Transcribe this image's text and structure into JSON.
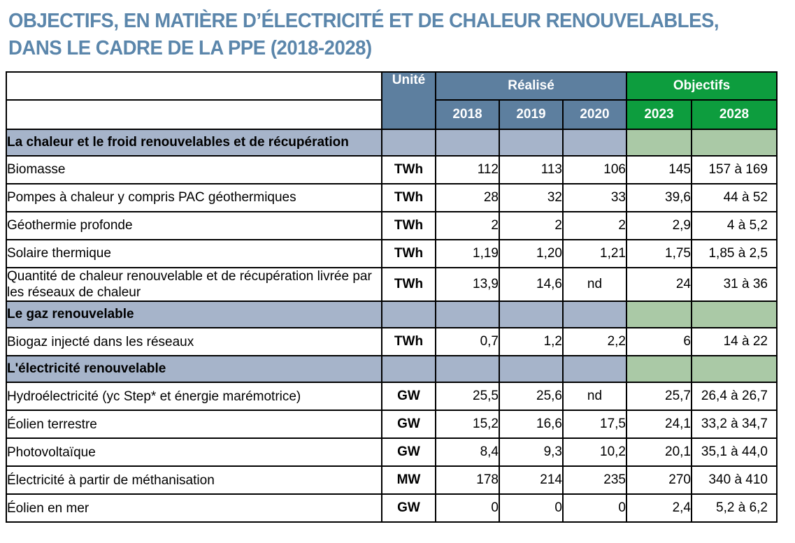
{
  "title": {
    "line1": "OBJECTIFS, EN MATIÈRE D’ÉLECTRICITÉ ET DE CHALEUR RENOUVELABLES,",
    "line2": "DANS LE CADRE DE LA PPE (2018-2028)"
  },
  "colors": {
    "title_text": "#5b86ab",
    "header_blue": "#5d7f9f",
    "header_green": "#0d9d3e",
    "section_blue": "#a6b4ca",
    "section_green": "#aac9a6",
    "header_text": "#ffffff",
    "body_text": "#000000",
    "grid_border": "#000000"
  },
  "table": {
    "header": {
      "unit_label": "Unité",
      "realized_label": "Réalisé",
      "objectives_label": "Objectifs",
      "realized_years": [
        "2018",
        "2019",
        "2020"
      ],
      "objective_years": [
        "2023",
        "2028"
      ]
    },
    "rows": [
      {
        "type": "section",
        "label": "La chaleur et le froid renouvelables et de récupération"
      },
      {
        "type": "data",
        "label": "Biomasse",
        "unit": "TWh",
        "values": [
          "112",
          "113",
          "106",
          "145",
          "157 à 169"
        ]
      },
      {
        "type": "data",
        "label": "Pompes à chaleur y compris PAC géothermiques",
        "unit": "TWh",
        "values": [
          "28",
          "32",
          "33",
          "39,6",
          "44 à 52"
        ]
      },
      {
        "type": "data",
        "label": "Géothermie profonde",
        "unit": "TWh",
        "values": [
          "2",
          "2",
          "2",
          "2,9",
          "4 à 5,2"
        ]
      },
      {
        "type": "data",
        "label": "Solaire thermique",
        "unit": "TWh",
        "values": [
          "1,19",
          "1,20",
          "1,21",
          "1,75",
          "1,85 à 2,5"
        ]
      },
      {
        "type": "data",
        "label": "Quantité de chaleur renouvelable et de récupération livrée par les réseaux de chaleur",
        "unit": "TWh",
        "values": [
          "13,9",
          "14,6",
          "nd",
          "24",
          "31 à 36"
        ]
      },
      {
        "type": "section",
        "label": "Le gaz renouvelable"
      },
      {
        "type": "data",
        "label": "Biogaz injecté dans les réseaux",
        "unit": "TWh",
        "values": [
          "0,7",
          "1,2",
          "2,2",
          "6",
          "14 à 22"
        ]
      },
      {
        "type": "section",
        "label": "L'électricité renouvelable"
      },
      {
        "type": "data",
        "label": "Hydroélectricité (yc Step* et énergie marémotrice)",
        "unit": "GW",
        "values": [
          "25,5",
          "25,6",
          "nd",
          "25,7",
          "26,4 à 26,7"
        ]
      },
      {
        "type": "data",
        "label": "Éolien terrestre",
        "unit": "GW",
        "values": [
          "15,2",
          "16,6",
          "17,5",
          "24,1",
          "33,2 à 34,7"
        ]
      },
      {
        "type": "data",
        "label": "Photovoltaïque",
        "unit": "GW",
        "values": [
          "8,4",
          "9,3",
          "10,2",
          "20,1",
          "35,1 à 44,0"
        ]
      },
      {
        "type": "data",
        "label": "Électricité à partir de méthanisation",
        "unit": "MW",
        "values": [
          "178",
          "214",
          "235",
          "270",
          "340 à 410"
        ]
      },
      {
        "type": "data",
        "label": "Éolien en mer",
        "unit": "GW",
        "values": [
          "0",
          "0",
          "0",
          "2,4",
          "5,2 à 6,2"
        ]
      }
    ]
  }
}
